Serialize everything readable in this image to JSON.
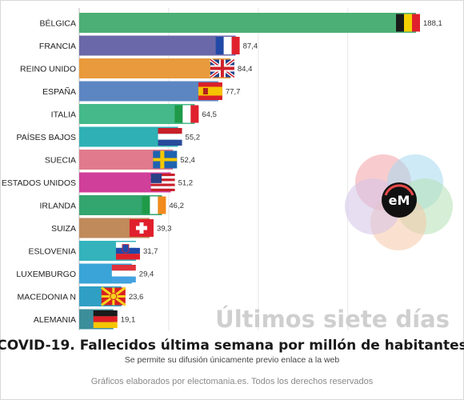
{
  "chart_data": {
    "type": "bar",
    "orientation": "horizontal",
    "title": "COVID-19. Fallecidos última semana por millón de habitantes",
    "subtitle": "Se permite su difusión únicamente previo enlace a la web",
    "watermark": "Últimos siete días",
    "footer": "Gráficos elaborados por electomania.es. Todos los derechos reservados",
    "logo_text": "eM",
    "xlim": [
      0,
      200
    ],
    "grid": true,
    "categories": [
      "BÉLGICA",
      "FRANCIA",
      "REINO UNIDO",
      "ESPAÑA",
      "ITALIA",
      "PAÍSES BAJOS",
      "SUECIA",
      "ESTADOS UNIDOS",
      "IRLANDA",
      "SUIZA",
      "ESLOVENIA",
      "LUXEMBURGO",
      "MACEDONIA N",
      "ALEMANIA"
    ],
    "values": [
      188.1,
      87.4,
      84.4,
      77.7,
      64.5,
      55.2,
      52.4,
      51.2,
      46.2,
      39.3,
      31.7,
      29.4,
      23.6,
      19.1
    ],
    "value_labels": [
      "188,1",
      "87,4",
      "84,4",
      "77,7",
      "64,5",
      "55,2",
      "52,4",
      "51,2",
      "46,2",
      "39,3",
      "31,7",
      "29,4",
      "23,6",
      "19,1"
    ],
    "colors": [
      "#4caf75",
      "#6a68a8",
      "#e89a3c",
      "#5c86c2",
      "#45b98a",
      "#2fb0b5",
      "#e07a8c",
      "#d03f9a",
      "#33a56e",
      "#c08a5a",
      "#34b3bd",
      "#3aa4d8",
      "#2f9fc4",
      "#3b8e9a"
    ],
    "flags": [
      "belgium",
      "france",
      "united-kingdom",
      "spain",
      "italy",
      "netherlands",
      "sweden",
      "united-states",
      "ireland",
      "switzerland",
      "slovenia",
      "luxembourg",
      "north-macedonia",
      "germany"
    ]
  }
}
